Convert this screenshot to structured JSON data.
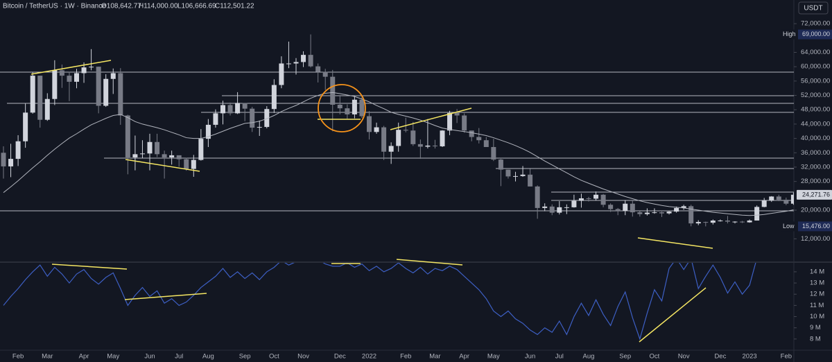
{
  "header": {
    "symbol": "Bitcoin / TetherUS · 1W · Binance",
    "ohlc": [
      "O108,642.77",
      "H114,000.00",
      "L106,666.69",
      "C112,501.22"
    ],
    "currency": "USDT"
  },
  "price_tags": [
    {
      "name": "High",
      "value": 69000,
      "label": "69,000.00"
    },
    {
      "value": 24271.76,
      "label": "24,271.76"
    },
    {
      "name": "Low",
      "value": 15476,
      "label": "15,476.00"
    }
  ],
  "chart_data": [
    {
      "type": "candlestick",
      "up_color": "#d1d4dc",
      "down_color": "#787b86",
      "ma_color": "#b2b5be",
      "categories": [
        null,
        null,
        "Feb",
        null,
        null,
        null,
        "Mar",
        null,
        null,
        null,
        null,
        "Apr",
        null,
        null,
        null,
        "May",
        null,
        null,
        null,
        null,
        "Jun",
        null,
        null,
        null,
        "Jul",
        null,
        null,
        null,
        "Aug",
        null,
        null,
        null,
        null,
        "Sep",
        null,
        null,
        null,
        "Oct",
        null,
        null,
        null,
        "Nov",
        null,
        null,
        null,
        null,
        "Dec",
        null,
        null,
        null,
        "2022",
        null,
        null,
        null,
        null,
        "Feb",
        null,
        null,
        null,
        "Mar",
        null,
        null,
        null,
        "Apr",
        null,
        null,
        null,
        "May",
        null,
        null,
        null,
        null,
        "Jun",
        null,
        null,
        null,
        "Jul",
        null,
        null,
        null,
        "Aug",
        null,
        null,
        null,
        null,
        "Sep",
        null,
        null,
        null,
        "Oct",
        null,
        null,
        null,
        "Nov",
        null,
        null,
        null,
        null,
        "Dec",
        null,
        null,
        null,
        "2023",
        null,
        null,
        null,
        null,
        "Feb",
        null
      ],
      "open": [
        36000,
        32200,
        34300,
        39200,
        47200,
        57500,
        45200,
        51000,
        59000,
        57500,
        55800,
        58200,
        59800,
        60000,
        49100,
        56600,
        58200,
        46400,
        34700,
        35600,
        35800,
        39000,
        35600,
        34700,
        35300,
        34200,
        31500,
        34000,
        39900,
        43800,
        47000,
        49300,
        47000,
        49900,
        48300,
        43000,
        43200,
        48200,
        54900,
        60900,
        60900,
        61300,
        63300,
        60100,
        58600,
        57200,
        49400,
        48400,
        46700,
        50800,
        46200,
        41800,
        43100,
        36300,
        37900,
        42400,
        42200,
        38400,
        37700,
        38000,
        37800,
        42200,
        47100,
        46400,
        42200,
        40400,
        39500,
        37600,
        34100,
        31300,
        29400,
        29500,
        29900,
        26600,
        20600,
        21000,
        19300,
        20800,
        20800,
        22600,
        23300,
        23200,
        24300,
        21500,
        20300,
        19800,
        21800,
        19400,
        18900,
        19300,
        19400,
        19100,
        19600,
        20600,
        21100,
        16300,
        16700,
        16500,
        17100,
        17100,
        16800,
        16800,
        16600,
        17100,
        20900,
        22700,
        23800,
        22900,
        21800
      ],
      "high": [
        37800,
        38500,
        40900,
        49700,
        58400,
        57500,
        52600,
        61800,
        60600,
        58600,
        59400,
        61200,
        64900,
        60000,
        57900,
        59500,
        59600,
        46600,
        40800,
        39500,
        41300,
        41300,
        36600,
        36600,
        35000,
        34600,
        35400,
        42600,
        45400,
        48100,
        50500,
        50000,
        52900,
        49800,
        48800,
        45000,
        49000,
        56500,
        62900,
        67000,
        62400,
        64300,
        69000,
        60900,
        59400,
        59100,
        51900,
        49500,
        51800,
        51900,
        47600,
        44400,
        43500,
        38900,
        44400,
        45800,
        44600,
        39700,
        45400,
        39600,
        42300,
        47700,
        48200,
        47000,
        41900,
        42900,
        40400,
        39900,
        34300,
        31300,
        30700,
        32300,
        31500,
        26900,
        21900,
        21600,
        22500,
        21600,
        24300,
        24600,
        23700,
        25200,
        24500,
        21900,
        20600,
        22800,
        22700,
        19700,
        20500,
        20500,
        19600,
        19700,
        21000,
        21500,
        21500,
        17200,
        16800,
        17400,
        17400,
        18400,
        16900,
        17000,
        17400,
        21300,
        23400,
        23900,
        24300,
        23500,
        24900
      ],
      "low": [
        28800,
        29200,
        32300,
        37400,
        46900,
        43000,
        44900,
        49300,
        54100,
        50400,
        54000,
        55500,
        59000,
        47000,
        48800,
        52400,
        43800,
        30000,
        31100,
        34500,
        31100,
        34800,
        28800,
        32700,
        32100,
        31000,
        29300,
        33800,
        37600,
        43000,
        43900,
        46400,
        46800,
        44800,
        41800,
        40700,
        42800,
        47100,
        54000,
        59600,
        57800,
        59900,
        59800,
        55600,
        53500,
        42000,
        46700,
        45500,
        45600,
        45700,
        39700,
        41300,
        34000,
        32900,
        36300,
        41700,
        37900,
        34300,
        37200,
        37200,
        37600,
        40900,
        44300,
        41600,
        39200,
        38600,
        37600,
        33700,
        26700,
        28800,
        28000,
        29300,
        26600,
        17600,
        19700,
        18600,
        18800,
        18900,
        20700,
        20700,
        22400,
        22700,
        20800,
        19500,
        18600,
        18600,
        18200,
        18200,
        18500,
        19000,
        18100,
        18800,
        19300,
        20100,
        15500,
        15800,
        15476,
        16000,
        16800,
        16300,
        16300,
        16400,
        16500,
        17100,
        20800,
        22300,
        22500,
        21400,
        21500
      ],
      "close": [
        32200,
        34300,
        39200,
        47200,
        57500,
        45200,
        51000,
        59000,
        57500,
        55800,
        58200,
        59800,
        60000,
        49100,
        56600,
        58200,
        46400,
        34700,
        35600,
        35800,
        39000,
        35600,
        34700,
        35300,
        34200,
        31500,
        34000,
        39900,
        43800,
        47000,
        49300,
        47000,
        49900,
        48300,
        43000,
        43200,
        48200,
        54900,
        60900,
        60900,
        61300,
        63300,
        60100,
        58600,
        57200,
        49400,
        48400,
        46700,
        50800,
        46200,
        41800,
        43100,
        36300,
        37900,
        42400,
        42200,
        38400,
        37700,
        38000,
        37800,
        42200,
        47100,
        46400,
        42200,
        40400,
        39500,
        37600,
        34100,
        31300,
        29400,
        29500,
        29900,
        26600,
        20600,
        21000,
        19300,
        20800,
        20800,
        22600,
        23300,
        23200,
        24300,
        21500,
        20300,
        19800,
        21800,
        19400,
        18900,
        19300,
        19400,
        19100,
        19600,
        20600,
        21100,
        16300,
        16700,
        16500,
        17100,
        17100,
        16800,
        16800,
        16600,
        17100,
        20900,
        22700,
        23800,
        22900,
        21800,
        24300
      ],
      "ma": [
        24900,
        26500,
        28200,
        30000,
        31800,
        33500,
        35300,
        37000,
        38600,
        40100,
        41300,
        42600,
        43800,
        44700,
        45600,
        46400,
        46700,
        45800,
        44700,
        44000,
        43500,
        43000,
        42400,
        41700,
        41000,
        40200,
        40000,
        40000,
        40500,
        41200,
        42000,
        42800,
        43500,
        44200,
        44400,
        44800,
        45500,
        46400,
        47500,
        48400,
        49200,
        50200,
        51200,
        52000,
        52600,
        52800,
        52500,
        52100,
        51700,
        51000,
        50200,
        49200,
        48300,
        47300,
        46700,
        46200,
        45700,
        45100,
        44400,
        43600,
        42900,
        42500,
        42200,
        41900,
        41600,
        41200,
        40800,
        40200,
        39500,
        38800,
        38000,
        37100,
        36100,
        34900,
        33700,
        32600,
        31500,
        30400,
        29300,
        28300,
        27500,
        26700,
        25900,
        25200,
        24500,
        23800,
        23200,
        22600,
        22100,
        21700,
        21300,
        21000,
        20800,
        20600,
        20300,
        20000,
        19700,
        19400,
        19200,
        19000,
        18800,
        18600,
        18500,
        18600,
        18800,
        19100,
        19400,
        19700,
        20100
      ],
      "ylim": [
        5500,
        78600
      ],
      "yticks": [
        {
          "value": 12000,
          "label": "12,000.00"
        },
        {
          "value": 20000,
          "label": "20,000.00"
        },
        {
          "value": 28000,
          "label": "28,000.00"
        },
        {
          "value": 32000,
          "label": "32,000.00"
        },
        {
          "value": 36000,
          "label": "36,000.00"
        },
        {
          "value": 40000,
          "label": "40,000.00"
        },
        {
          "value": 44000,
          "label": "44,000.00"
        },
        {
          "value": 48000,
          "label": "48,000.00"
        },
        {
          "value": 52000,
          "label": "52,000.00"
        },
        {
          "value": 56000,
          "label": "56,000.00"
        },
        {
          "value": 60000,
          "label": "60,000.00"
        },
        {
          "value": 64000,
          "label": "64,000.00"
        },
        {
          "value": 72000,
          "label": "72,000.00"
        }
      ]
    },
    {
      "type": "line",
      "color": "#3d5fc4",
      "values": [
        11.0,
        11.8,
        12.5,
        13.3,
        14.0,
        14.6,
        13.6,
        14.4,
        13.8,
        13.0,
        13.8,
        14.2,
        13.4,
        12.9,
        13.5,
        13.9,
        12.5,
        11.0,
        11.9,
        12.6,
        11.8,
        12.3,
        11.2,
        11.6,
        11.0,
        11.3,
        11.9,
        12.6,
        13.1,
        13.6,
        14.3,
        13.5,
        14.0,
        13.4,
        13.9,
        13.3,
        14.0,
        14.4,
        15.0,
        14.6,
        14.9,
        15.2,
        15.4,
        15.1,
        14.7,
        14.5,
        14.5,
        14.8,
        14.4,
        14.7,
        14.1,
        14.5,
        14.0,
        14.3,
        14.8,
        14.3,
        13.9,
        14.4,
        13.8,
        14.3,
        14.1,
        14.5,
        14.2,
        13.6,
        13.0,
        12.4,
        11.6,
        10.5,
        10.0,
        10.5,
        9.8,
        9.4,
        8.8,
        8.4,
        9.0,
        8.6,
        9.6,
        8.4,
        10.0,
        11.2,
        10.1,
        11.5,
        10.2,
        9.2,
        10.9,
        12.2,
        9.9,
        8.0,
        10.3,
        12.4,
        11.4,
        14.3,
        15.2,
        14.2,
        15.2,
        12.5,
        13.6,
        14.6,
        13.5,
        12.1,
        13.1,
        12.0,
        12.8,
        15.2,
        null,
        null,
        null,
        null,
        null
      ],
      "ylim": [
        7.0,
        14.8
      ],
      "yticks": [
        {
          "value": 8,
          "label": "8 M"
        },
        {
          "value": 9,
          "label": "9 M"
        },
        {
          "value": 10,
          "label": "10 M"
        },
        {
          "value": 11,
          "label": "11 M"
        },
        {
          "value": 12,
          "label": "12 M"
        },
        {
          "value": 13,
          "label": "13 M"
        },
        {
          "value": 14,
          "label": "14 M"
        }
      ]
    }
  ]
}
